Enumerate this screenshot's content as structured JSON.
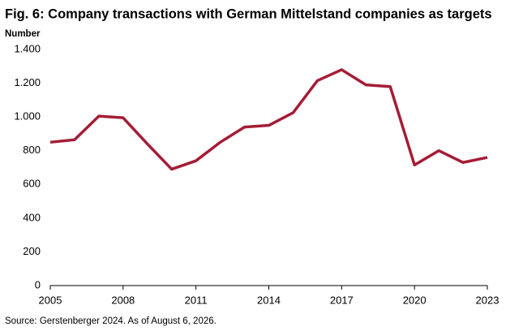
{
  "chart_data": {
    "type": "line",
    "title": "Fig. 6: Company transactions with German Mittelstand companies as targets",
    "y_label": "Number",
    "source": "Source: Gerstenberger 2024. As of August 6, 2026.",
    "x": [
      2005,
      2006,
      2007,
      2008,
      2009,
      2010,
      2011,
      2012,
      2013,
      2014,
      2015,
      2016,
      2017,
      2018,
      2019,
      2020,
      2021,
      2022,
      2023
    ],
    "series": [
      {
        "name": "Transactions",
        "color": "#a51d36",
        "values": [
          850,
          865,
          1005,
          995,
          840,
          690,
          740,
          850,
          940,
          950,
          1025,
          1215,
          1280,
          1190,
          1180,
          715,
          800,
          730,
          760
        ]
      }
    ],
    "xlim": [
      2005,
      2023
    ],
    "xticks": [
      2005,
      2008,
      2011,
      2014,
      2017,
      2020,
      2023
    ],
    "ylim": [
      0,
      1400
    ],
    "yticks": [
      0,
      200,
      400,
      600,
      800,
      {
        "value": 1000,
        "label": "1.000"
      },
      {
        "value": 1200,
        "label": "1.200"
      },
      {
        "value": 1400,
        "label": "1.400"
      }
    ],
    "grid": false
  }
}
